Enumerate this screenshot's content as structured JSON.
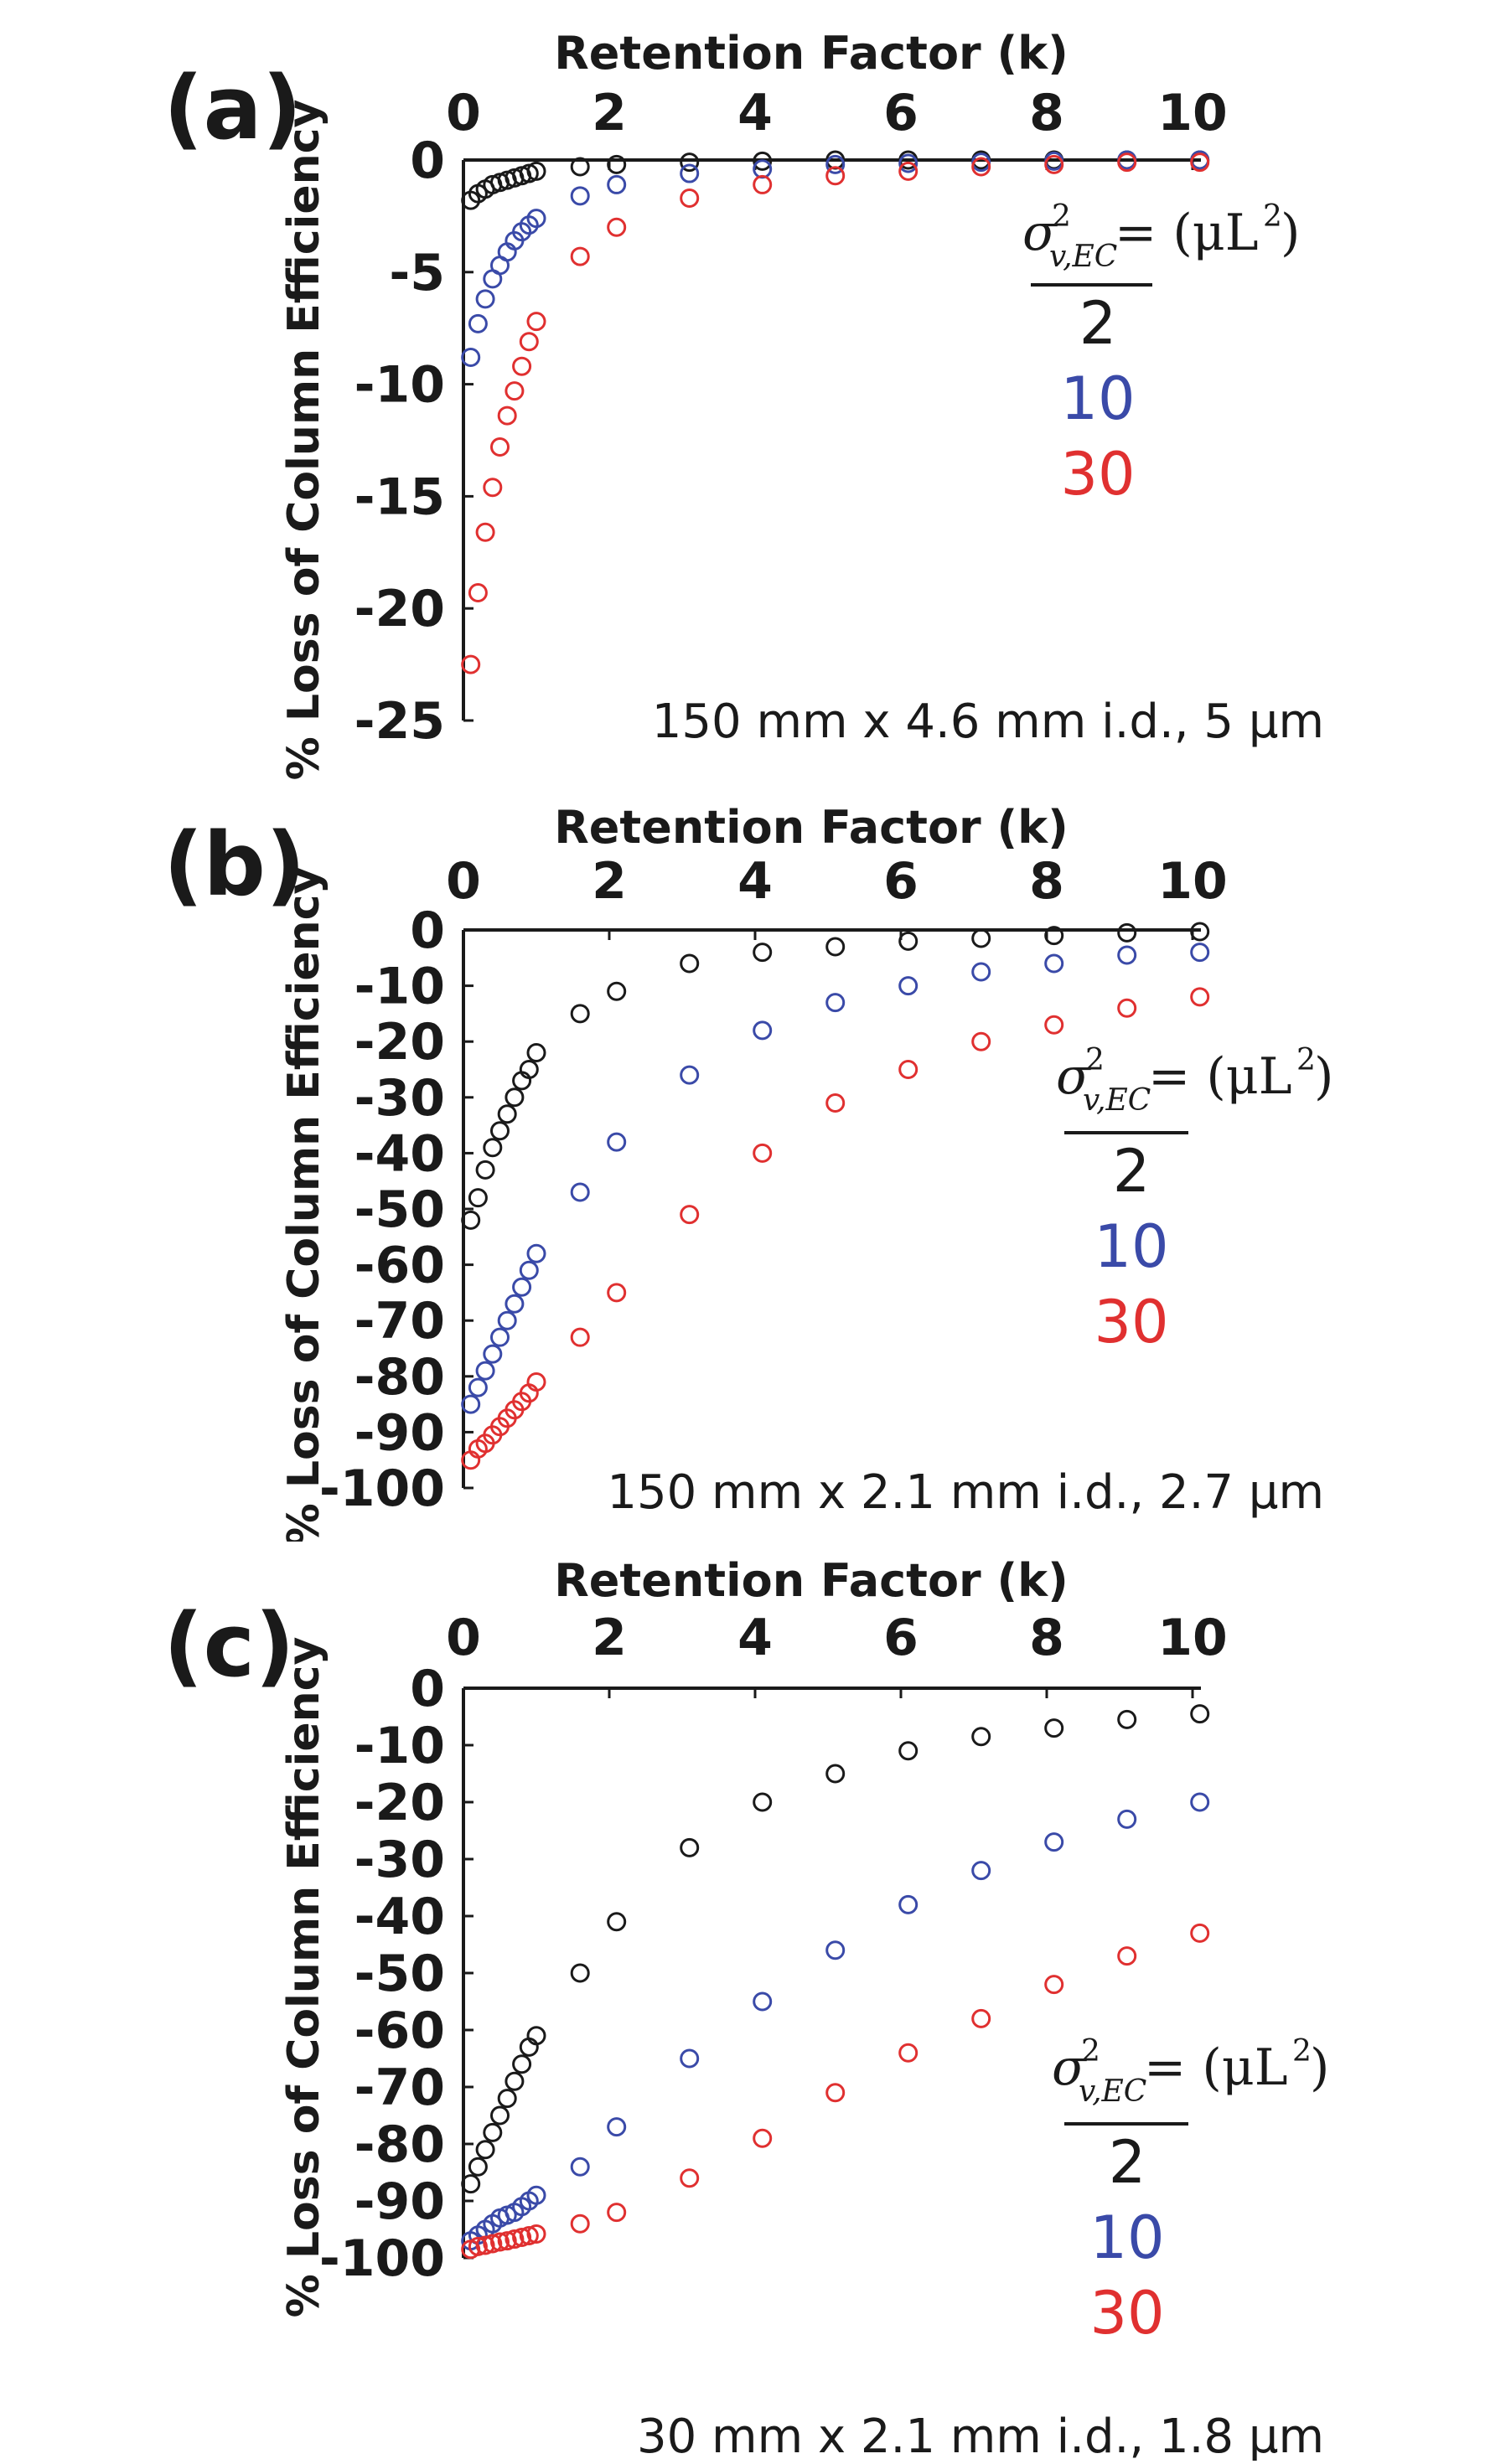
{
  "colors": {
    "series_2": "#1a1a1a",
    "series_10": "#3a4aa8",
    "series_30": "#e03030"
  },
  "chart_data": [
    {
      "type": "scatter",
      "panel_label": "(a)",
      "xlabel": "Retention Factor (k)",
      "ylabel": "% Loss of Column Efficiency",
      "xlim": [
        0,
        10
      ],
      "ylim": [
        -25,
        0
      ],
      "xticks": [
        0,
        2,
        4,
        6,
        8,
        10
      ],
      "yticks": [
        0,
        -5,
        -10,
        -15,
        -20,
        -25
      ],
      "column_note": "150 mm x 4.6 mm i.d., 5 μm",
      "legend": {
        "header": "σ",
        "sup": "2",
        "sub": "v,EC",
        "eq": " = (μL",
        "close": ")",
        "sup2": "2",
        "items": [
          "2",
          "10",
          "30"
        ]
      },
      "series": [
        {
          "name": "2",
          "x": [
            0.1,
            0.2,
            0.3,
            0.4,
            0.5,
            0.6,
            0.7,
            0.8,
            0.9,
            1.0,
            1.6,
            2.1,
            3.1,
            4.1,
            5.1,
            6.1,
            7.1,
            8.1,
            9.1,
            10.1
          ],
          "y": [
            -1.8,
            -1.5,
            -1.3,
            -1.1,
            -1.0,
            -0.9,
            -0.8,
            -0.7,
            -0.6,
            -0.5,
            -0.3,
            -0.2,
            -0.1,
            -0.05,
            0,
            0,
            0,
            0,
            0,
            0
          ]
        },
        {
          "name": "10",
          "x": [
            0.1,
            0.2,
            0.3,
            0.4,
            0.5,
            0.6,
            0.7,
            0.8,
            0.9,
            1.0,
            1.6,
            2.1,
            3.1,
            4.1,
            5.1,
            6.1,
            7.1,
            8.1,
            9.1,
            10.1
          ],
          "y": [
            -8.8,
            -7.3,
            -6.2,
            -5.3,
            -4.7,
            -4.1,
            -3.6,
            -3.2,
            -2.9,
            -2.6,
            -1.6,
            -1.1,
            -0.6,
            -0.4,
            -0.2,
            -0.15,
            -0.1,
            -0.05,
            0,
            0
          ]
        },
        {
          "name": "30",
          "x": [
            0.1,
            0.2,
            0.3,
            0.4,
            0.5,
            0.6,
            0.7,
            0.8,
            0.9,
            1.0,
            1.6,
            2.1,
            3.1,
            4.1,
            5.1,
            6.1,
            7.1,
            8.1,
            9.1,
            10.1
          ],
          "y": [
            -22.5,
            -19.3,
            -16.6,
            -14.6,
            -12.8,
            -11.4,
            -10.3,
            -9.2,
            -8.1,
            -7.2,
            -4.3,
            -3.0,
            -1.7,
            -1.1,
            -0.7,
            -0.5,
            -0.3,
            -0.2,
            -0.1,
            -0.1
          ]
        }
      ]
    },
    {
      "type": "scatter",
      "panel_label": "(b)",
      "xlabel": "Retention Factor (k)",
      "ylabel": "% Loss of Column Efficiency",
      "xlim": [
        0,
        10
      ],
      "ylim": [
        -100,
        0
      ],
      "xticks": [
        0,
        2,
        4,
        6,
        8,
        10
      ],
      "yticks": [
        0,
        -10,
        -20,
        -30,
        -40,
        -50,
        -60,
        -70,
        -80,
        -90,
        -100
      ],
      "column_note": "150 mm x 2.1 mm i.d., 2.7 μm",
      "legend": {
        "header": "σ",
        "sup": "2",
        "sub": "v,EC",
        "eq": " = (μL",
        "close": ")",
        "sup2": "2",
        "items": [
          "2",
          "10",
          "30"
        ]
      },
      "series": [
        {
          "name": "2",
          "x": [
            0.1,
            0.2,
            0.3,
            0.4,
            0.5,
            0.6,
            0.7,
            0.8,
            0.9,
            1.0,
            1.6,
            2.1,
            3.1,
            4.1,
            5.1,
            6.1,
            7.1,
            8.1,
            9.1,
            10.1
          ],
          "y": [
            -52,
            -48,
            -43,
            -39,
            -36,
            -33,
            -30,
            -27,
            -25,
            -22,
            -15,
            -11,
            -6,
            -4,
            -3,
            -2,
            -1.5,
            -1,
            -0.5,
            -0.3
          ]
        },
        {
          "name": "10",
          "x": [
            0.1,
            0.2,
            0.3,
            0.4,
            0.5,
            0.6,
            0.7,
            0.8,
            0.9,
            1.0,
            1.6,
            2.1,
            3.1,
            4.1,
            5.1,
            6.1,
            7.1,
            8.1,
            9.1,
            10.1
          ],
          "y": [
            -85,
            -82,
            -79,
            -76,
            -73,
            -70,
            -67,
            -64,
            -61,
            -58,
            -47,
            -38,
            -26,
            -18,
            -13,
            -10,
            -7.5,
            -6,
            -4.5,
            -4
          ]
        },
        {
          "name": "30",
          "x": [
            0.1,
            0.2,
            0.3,
            0.4,
            0.5,
            0.6,
            0.7,
            0.8,
            0.9,
            1.0,
            1.6,
            2.1,
            3.1,
            4.1,
            5.1,
            6.1,
            7.1,
            8.1,
            9.1,
            10.1
          ],
          "y": [
            -95,
            -93,
            -92,
            -90.5,
            -89,
            -87.5,
            -86,
            -84.5,
            -83,
            -81,
            -73,
            -65,
            -51,
            -40,
            -31,
            -25,
            -20,
            -17,
            -14,
            -12
          ]
        }
      ]
    },
    {
      "type": "scatter",
      "panel_label": "(c)",
      "xlabel": "Retention Factor (k)",
      "ylabel": "% Loss of Column Efficiency",
      "xlim": [
        0,
        10
      ],
      "ylim": [
        -100,
        0
      ],
      "xticks": [
        0,
        2,
        4,
        6,
        8,
        10
      ],
      "yticks": [
        0,
        -10,
        -20,
        -30,
        -40,
        -50,
        -60,
        -70,
        -80,
        -90,
        -100
      ],
      "column_note": "30 mm x 2.1 mm i.d., 1.8 μm",
      "legend": {
        "header": "σ",
        "sup": "2",
        "sub": "v,EC",
        "eq": " = (μL",
        "close": ")",
        "sup2": "2",
        "items": [
          "2",
          "10",
          "30"
        ]
      },
      "series": [
        {
          "name": "2",
          "x": [
            0.1,
            0.2,
            0.3,
            0.4,
            0.5,
            0.6,
            0.7,
            0.8,
            0.9,
            1.0,
            1.6,
            2.1,
            3.1,
            4.1,
            5.1,
            6.1,
            7.1,
            8.1,
            9.1,
            10.1
          ],
          "y": [
            -87,
            -84,
            -81,
            -78,
            -75,
            -72,
            -69,
            -66,
            -63,
            -61,
            -50,
            -41,
            -28,
            -20,
            -15,
            -11,
            -8.5,
            -7,
            -5.5,
            -4.5
          ]
        },
        {
          "name": "10",
          "x": [
            0.1,
            0.2,
            0.3,
            0.4,
            0.5,
            0.6,
            0.7,
            0.8,
            0.9,
            1.0,
            1.6,
            2.1,
            3.1,
            4.1,
            5.1,
            6.1,
            7.1,
            8.1,
            9.1,
            10.1
          ],
          "y": [
            -97,
            -96,
            -95,
            -94,
            -93,
            -92.5,
            -92,
            -91,
            -90,
            -89,
            -84,
            -77,
            -65,
            -55,
            -46,
            -38,
            -32,
            -27,
            -23,
            -20
          ]
        },
        {
          "name": "30",
          "x": [
            0.1,
            0.2,
            0.3,
            0.4,
            0.5,
            0.6,
            0.7,
            0.8,
            0.9,
            1.0,
            1.6,
            2.1,
            3.1,
            4.1,
            5.1,
            6.1,
            7.1,
            8.1,
            9.1,
            10.1
          ],
          "y": [
            -98.5,
            -98,
            -97.8,
            -97.5,
            -97.2,
            -97,
            -96.7,
            -96.4,
            -96.1,
            -95.8,
            -94,
            -92,
            -86,
            -79,
            -71,
            -64,
            -58,
            -52,
            -47,
            -43
          ]
        }
      ]
    }
  ]
}
